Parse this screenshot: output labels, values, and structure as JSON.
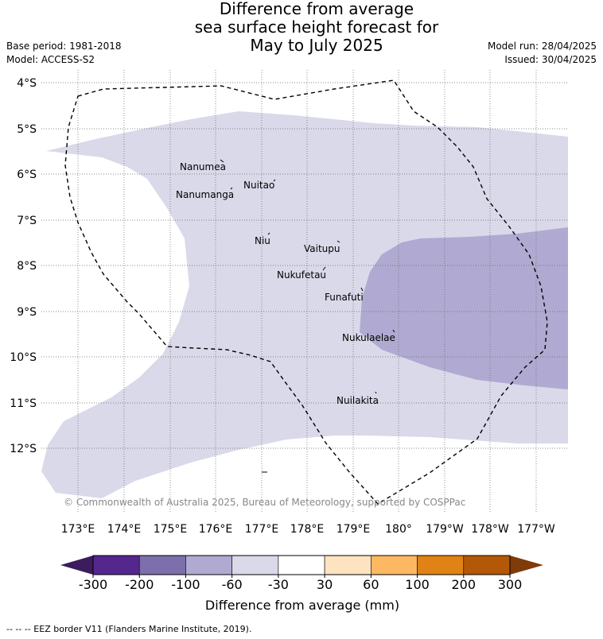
{
  "title_lines": [
    "Difference from average",
    "sea surface height forecast for",
    "May to July 2025"
  ],
  "base_period": "Base period: 1981-2018",
  "model": "Model: ACCESS-S2",
  "model_run": "Model run: 28/04/2025",
  "issued": "Issued: 30/04/2025",
  "copyright": "© Commonwealth of Australia 2025, Bureau of Meteorology, supported by COSPPac",
  "lat_labels": [
    "4°S",
    "5°S",
    "6°S",
    "7°S",
    "8°S",
    "9°S",
    "10°S",
    "11°S",
    "12°S"
  ],
  "lon_labels": [
    "173°E",
    "174°E",
    "175°E",
    "176°E",
    "177°E",
    "178°E",
    "179°E",
    "180°",
    "179°W",
    "178°W",
    "177°W"
  ],
  "places": [
    {
      "name": "Nanumea"
    },
    {
      "name": "Nuitao"
    },
    {
      "name": "Nanumanga"
    },
    {
      "name": "Niu"
    },
    {
      "name": "Vaitupu"
    },
    {
      "name": "Nukufetau"
    },
    {
      "name": "Funafuti"
    },
    {
      "name": "Nukulaelae"
    },
    {
      "name": "Nuilakita"
    }
  ],
  "colorbar": {
    "ticks": [
      "-300",
      "-200",
      "-100",
      "-60",
      "-30",
      "30",
      "60",
      "100",
      "200",
      "300"
    ],
    "colors": {
      "under": "#3b1c5c",
      "bins": [
        "#54278f",
        "#7d6fab",
        "#b0aad2",
        "#d9d9ea",
        "#ffffff",
        "#fde3c0",
        "#fdb863",
        "#e08214",
        "#b35806"
      ],
      "over": "#7f3b08"
    },
    "label": "Difference from average (mm)"
  },
  "legend_note": "-- -- -- EEZ border V11 (Flanders Marine Institute, 2019)."
}
